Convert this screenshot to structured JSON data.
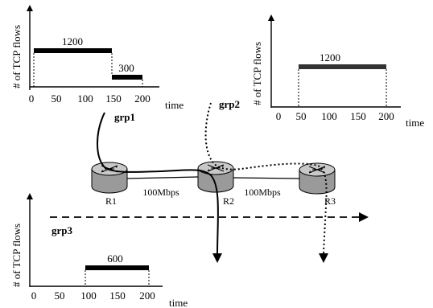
{
  "colors": {
    "line": "#000000",
    "router_body": "#9a9a9a",
    "router_top": "#c8c8c8",
    "bar_grp2": "#333333"
  },
  "chart_data": [
    {
      "type": "bar",
      "group": "grp1",
      "ylabel": "# of TCP flows",
      "xlabel": "time",
      "ticks": [
        "0",
        "50",
        "100",
        "150",
        "200"
      ],
      "segments": [
        {
          "start": 0,
          "end": 150,
          "flows": 1200,
          "label": "1200"
        },
        {
          "start": 150,
          "end": 200,
          "flows": 300,
          "label": "300"
        }
      ]
    },
    {
      "type": "bar",
      "group": "grp2",
      "ylabel": "# of TCP flows",
      "xlabel": "time",
      "ticks": [
        "0",
        "50",
        "100",
        "150",
        "200"
      ],
      "segments": [
        {
          "start": 50,
          "end": 200,
          "flows": 1200,
          "label": "1200"
        }
      ]
    },
    {
      "type": "bar",
      "group": "grp3",
      "ylabel": "# of TCP flows",
      "xlabel": "time",
      "ticks": [
        "0",
        "50",
        "100",
        "150",
        "200"
      ],
      "segments": [
        {
          "start": 100,
          "end": 200,
          "flows": 600,
          "label": "600"
        }
      ]
    }
  ],
  "groups": {
    "grp1": "grp1",
    "grp2": "grp2",
    "grp3": "grp3"
  },
  "routers": {
    "r1": "R1",
    "r2": "R2",
    "r3": "R3"
  },
  "links": {
    "r1_r2": "100Mbps",
    "r2_r3": "100Mbps"
  }
}
